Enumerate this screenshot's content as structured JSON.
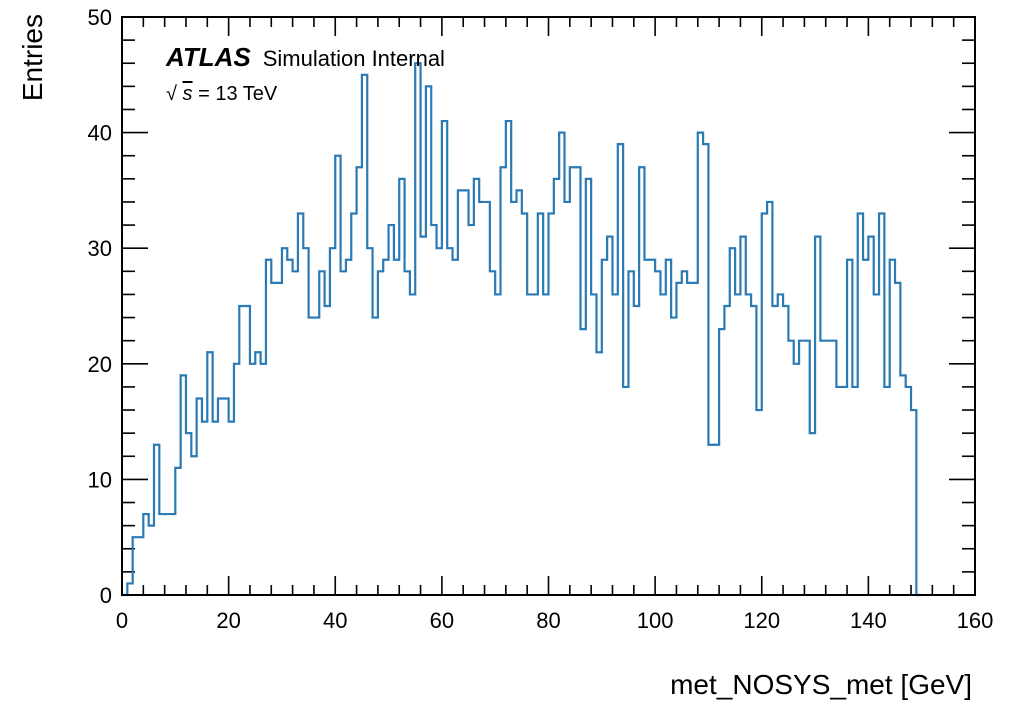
{
  "chart_data": {
    "type": "histogram",
    "xlabel": "met_NOSYS_met [GeV]",
    "ylabel": "Entries",
    "xlim": [
      0,
      160
    ],
    "ylim": [
      0,
      50
    ],
    "x_ticks": [
      0,
      20,
      40,
      60,
      80,
      100,
      120,
      140,
      160
    ],
    "y_ticks": [
      0,
      10,
      20,
      30,
      40,
      50
    ],
    "bin_width": 1,
    "bin_start": 0,
    "values": [
      0,
      1,
      5,
      5,
      7,
      6,
      13,
      7,
      7,
      7,
      11,
      19,
      14,
      12,
      17,
      15,
      21,
      15,
      17,
      17,
      15,
      20,
      25,
      25,
      20,
      21,
      20,
      29,
      27,
      27,
      30,
      29,
      28,
      33,
      30,
      24,
      24,
      28,
      25,
      30,
      38,
      28,
      29,
      33,
      37,
      45,
      30,
      24,
      28,
      29,
      32,
      29,
      36,
      28,
      26,
      46,
      31,
      44,
      32,
      30,
      41,
      30,
      29,
      35,
      35,
      32,
      36,
      34,
      34,
      28,
      26,
      37,
      41,
      34,
      35,
      33,
      26,
      26,
      33,
      26,
      33,
      36,
      40,
      34,
      37,
      37,
      23,
      36,
      26,
      21,
      29,
      31,
      26,
      39,
      18,
      28,
      25,
      37,
      29,
      29,
      28,
      26,
      29,
      24,
      27,
      28,
      27,
      27,
      40,
      39,
      13,
      13,
      23,
      25,
      30,
      26,
      31,
      26,
      25,
      16,
      33,
      34,
      25,
      26,
      25,
      22,
      20,
      22,
      22,
      14,
      31,
      22,
      22,
      22,
      18,
      18,
      29,
      18,
      33,
      29,
      31,
      26,
      33,
      18,
      29,
      27,
      19,
      18,
      16,
      0
    ],
    "line_color": "#2a7ab5",
    "grid": false,
    "annotations": {
      "experiment": "ATLAS",
      "label": "Simulation Internal",
      "sqrt": "√",
      "s": "s",
      "energy": " = 13 TeV"
    }
  }
}
